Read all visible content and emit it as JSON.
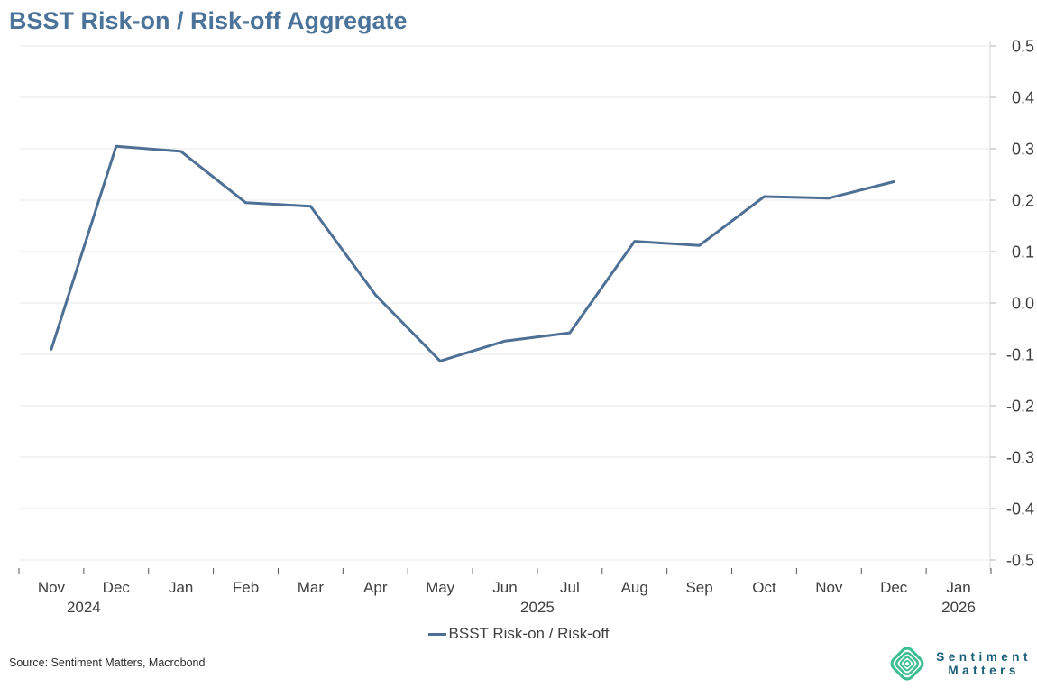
{
  "chart_data": {
    "type": "line",
    "title": "BSST Risk-on / Risk-off Aggregate",
    "x_tick_labels": [
      "Nov",
      "Dec",
      "Jan",
      "Feb",
      "Mar",
      "Apr",
      "May",
      "Jun",
      "Jul",
      "Aug",
      "Sep",
      "Oct",
      "Nov",
      "Dec",
      "Jan"
    ],
    "x_categories": [
      "Nov 2024",
      "Dec 2024",
      "Jan 2025",
      "Feb 2025",
      "Mar 2025",
      "Apr 2025",
      "May 2025",
      "Jun 2025",
      "Jul 2025",
      "Aug 2025",
      "Sep 2025",
      "Oct 2025",
      "Nov 2025",
      "Dec 2025"
    ],
    "year_labels": [
      {
        "text": "2024",
        "pos": 1
      },
      {
        "text": "2025",
        "pos": 8
      },
      {
        "text": "2026",
        "pos": 14.5
      }
    ],
    "series": [
      {
        "name": "BSST Risk-on / Risk-off",
        "values": [
          -0.09,
          0.305,
          0.295,
          0.195,
          0.188,
          0.016,
          -0.113,
          -0.074,
          -0.058,
          0.12,
          0.112,
          0.207,
          0.204,
          0.236
        ]
      }
    ],
    "ylim": [
      -0.5,
      0.5
    ],
    "y_ticks": [
      "0.5",
      "0.4",
      "0.3",
      "0.2",
      "0.1",
      "0.0",
      "-0.1",
      "-0.2",
      "-0.3",
      "-0.4",
      "-0.5"
    ],
    "grid": "horizontal",
    "legend_position": "bottom",
    "xlabel": "",
    "ylabel": ""
  },
  "legend": {
    "label": "BSST Risk-on / Risk-off"
  },
  "source": "Source: Sentiment Matters, Macrobond",
  "logo": {
    "line1": "Sentiment",
    "line2": "Matters"
  },
  "colors": {
    "title": "#4c7399",
    "line": "#4e7095",
    "grid": "#e8e8e8",
    "axis_line": "#d6d6d6",
    "x_tick": "#555555",
    "y_tick": "#b0b0b0",
    "axis_label": "#3f3f3f",
    "source_text": "#2e2e2e",
    "logo_green": "#3cbd92",
    "logo_text": "#175d78"
  }
}
